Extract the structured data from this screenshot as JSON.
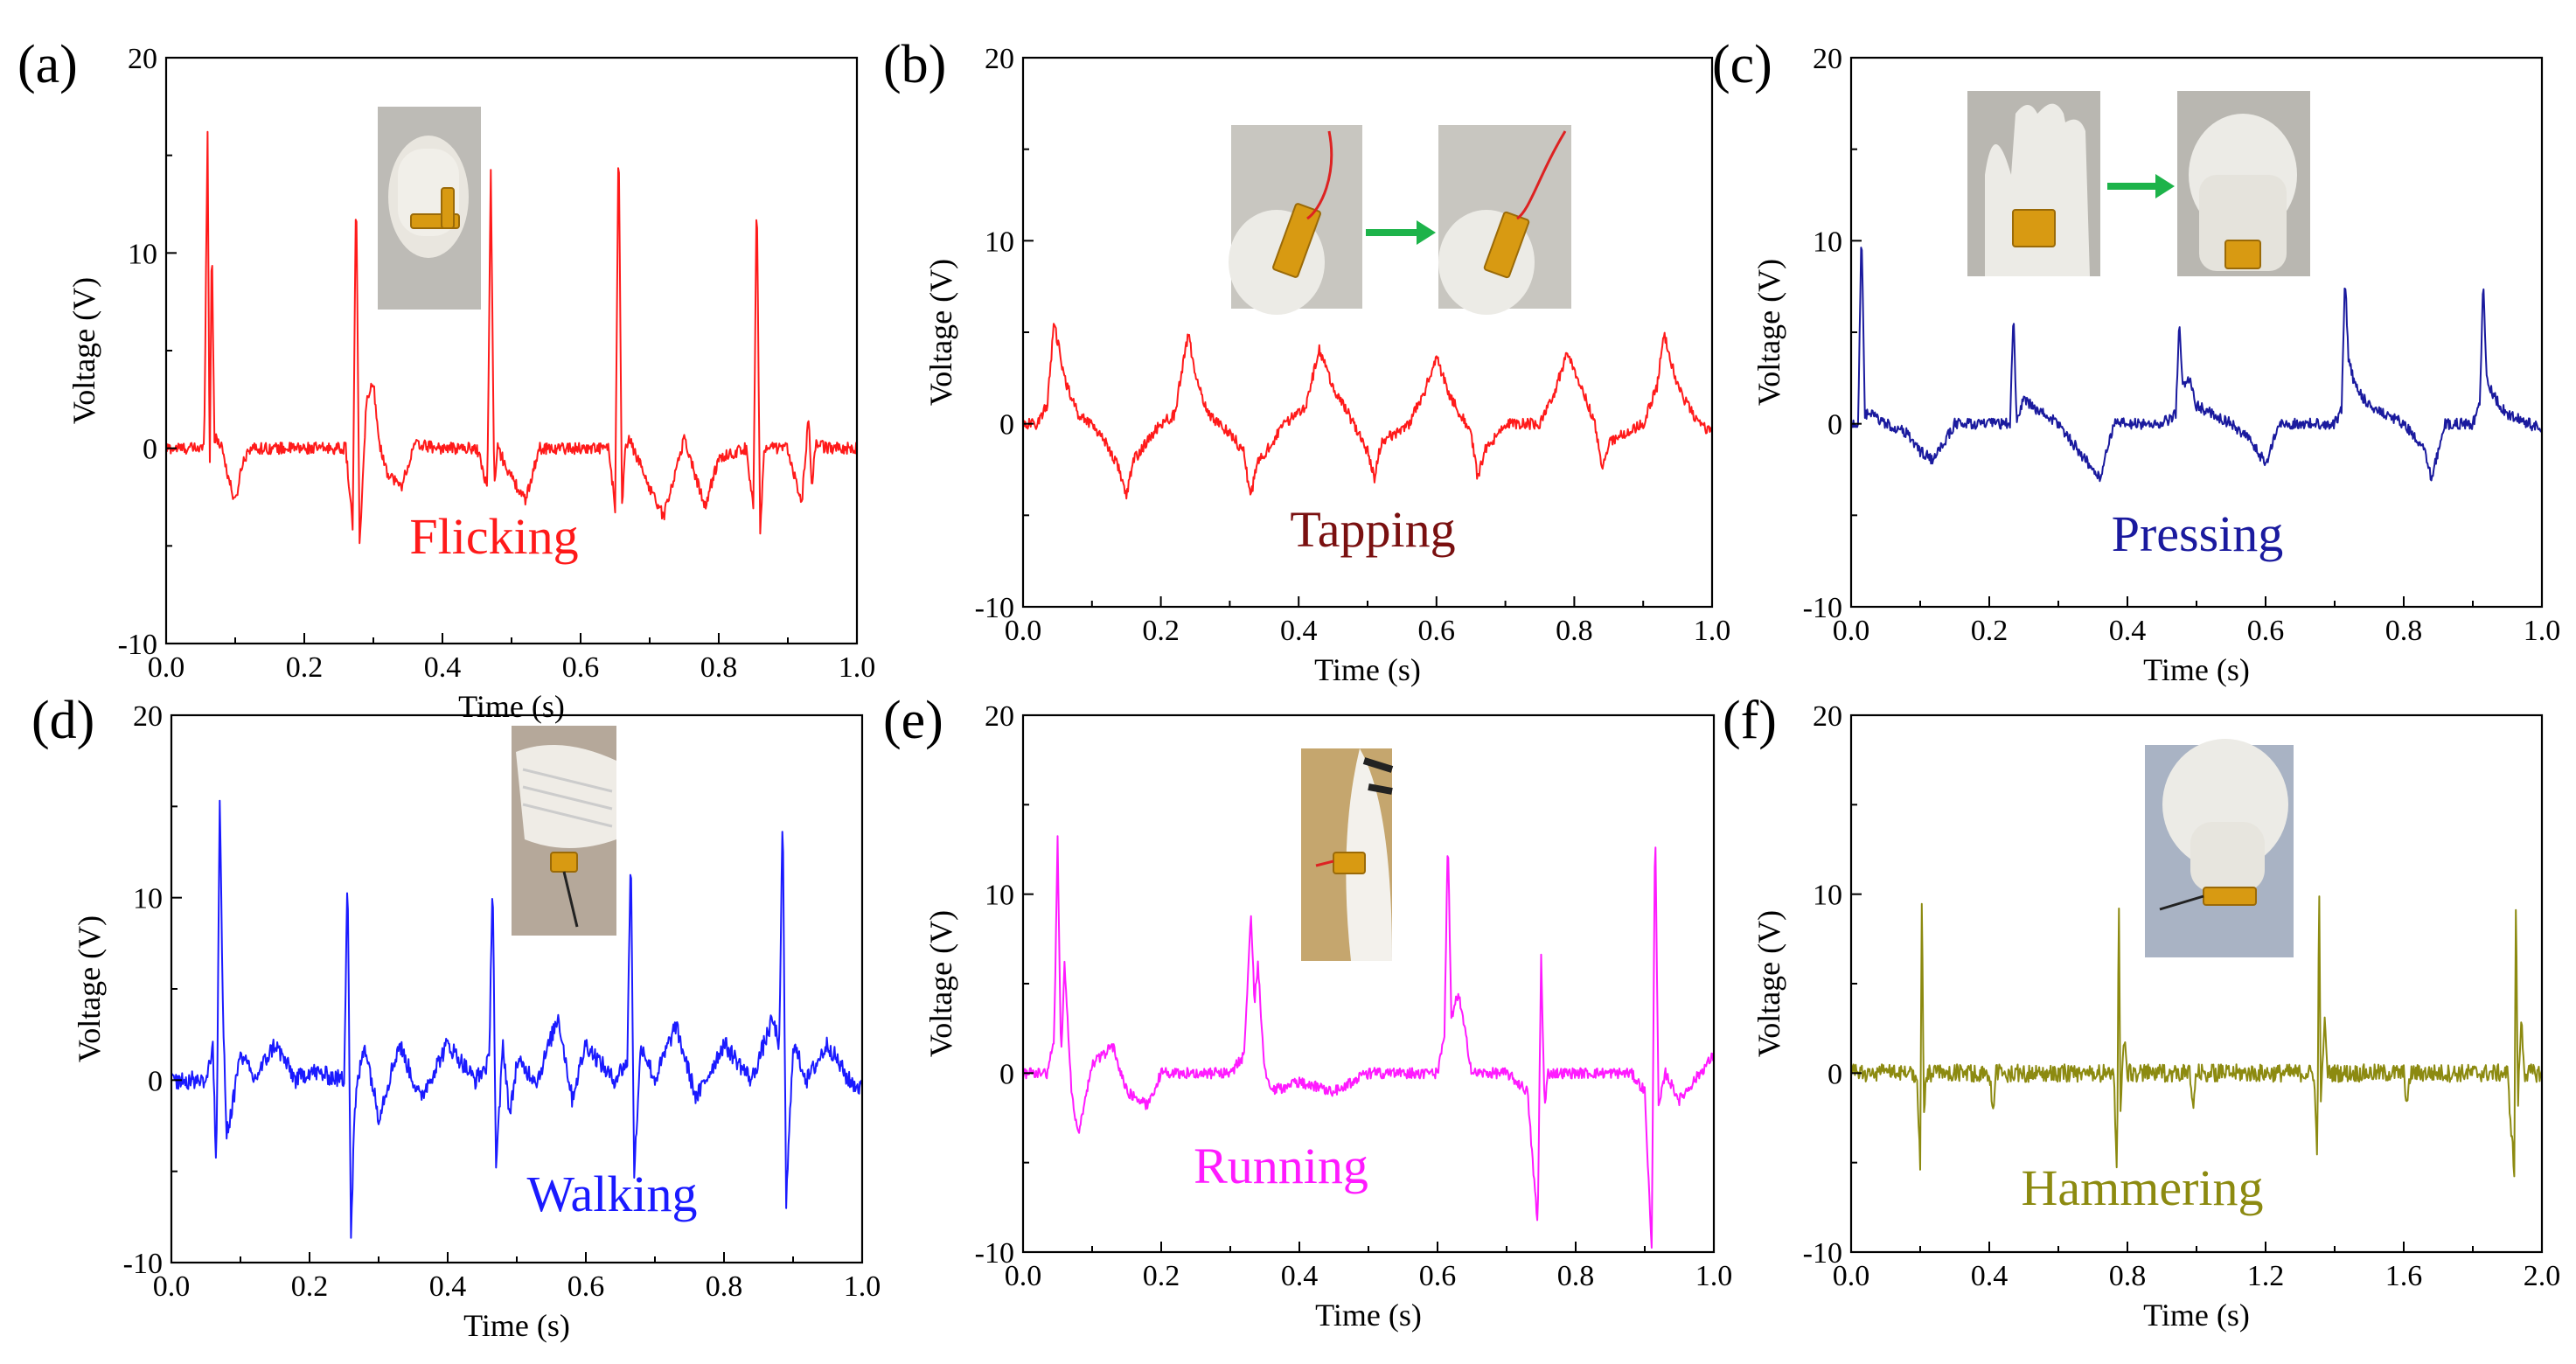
{
  "colors": {
    "red": "#ff1a1a",
    "blue": "#1a1aff",
    "navy": "#1a1a9e",
    "magenta": "#ff1aff",
    "olive": "#8c8a10",
    "darkred": "#7a1010",
    "arrow": "#1db34a"
  },
  "chart_data": [
    {
      "panel": "(a)",
      "type": "line",
      "xlabel": "Time (s)",
      "ylabel": "Voltage (V)",
      "xlim": [
        0,
        1.0
      ],
      "ylim": [
        -10,
        20
      ],
      "xticks": [
        "0.0",
        "0.2",
        "0.4",
        "0.6",
        "0.8",
        "1.0"
      ],
      "yticks": [
        "-10",
        "0",
        "10",
        "20"
      ],
      "annotation": "Flicking",
      "color": "#ff1a1a",
      "annotation_color": "#ff1a1a",
      "noise": 0.3,
      "photo": "finger-flicking-sensor-photo",
      "x": [
        0,
        0.055,
        0.06,
        0.063,
        0.066,
        0.07,
        0.08,
        0.09,
        0.1,
        0.11,
        0.12,
        0.2,
        0.26,
        0.27,
        0.275,
        0.28,
        0.285,
        0.29,
        0.3,
        0.31,
        0.32,
        0.34,
        0.36,
        0.4,
        0.45,
        0.465,
        0.47,
        0.475,
        0.48,
        0.5,
        0.52,
        0.54,
        0.6,
        0.64,
        0.65,
        0.655,
        0.66,
        0.665,
        0.67,
        0.7,
        0.72,
        0.75,
        0.78,
        0.8,
        0.84,
        0.85,
        0.855,
        0.86,
        0.865,
        0.87,
        0.9,
        0.92,
        0.93,
        0.935,
        0.94,
        0.96,
        1.0
      ],
      "y": [
        0,
        0,
        16.5,
        -2,
        11,
        0.5,
        0.2,
        -1.5,
        -2.8,
        -0.8,
        0,
        0,
        0,
        -4,
        13.7,
        -4.8,
        -1.5,
        2.5,
        3.3,
        0,
        -1.2,
        -2,
        0.2,
        0,
        0,
        -2,
        14.2,
        -2,
        0,
        -1.5,
        -2.7,
        0,
        0,
        0,
        -3,
        16.2,
        -3,
        0,
        0.5,
        -2,
        -3.5,
        0.5,
        -3,
        -0.5,
        0,
        -3,
        13.3,
        -4.5,
        -0.5,
        0,
        0,
        -2.8,
        1.5,
        -2,
        0.2,
        0,
        0
      ]
    },
    {
      "panel": "(b)",
      "type": "line",
      "xlabel": "Time (s)",
      "ylabel": "Voltage (V)",
      "xlim": [
        0,
        1.0
      ],
      "ylim": [
        -10,
        20
      ],
      "xticks": [
        "0.0",
        "0.2",
        "0.4",
        "0.6",
        "0.8",
        "1.0"
      ],
      "yticks": [
        "-10",
        "0",
        "10",
        "20"
      ],
      "annotation": "Tapping",
      "color": "#ff1a1a",
      "annotation_color": "#7a1010",
      "noise": 0.3,
      "photo": "finger-tapping-sequence-photo",
      "x": [
        0,
        0.02,
        0.035,
        0.045,
        0.06,
        0.08,
        0.1,
        0.12,
        0.14,
        0.15,
        0.16,
        0.2,
        0.22,
        0.24,
        0.25,
        0.27,
        0.3,
        0.32,
        0.33,
        0.34,
        0.38,
        0.41,
        0.43,
        0.45,
        0.48,
        0.5,
        0.51,
        0.52,
        0.56,
        0.58,
        0.6,
        0.62,
        0.65,
        0.66,
        0.67,
        0.7,
        0.75,
        0.77,
        0.79,
        0.81,
        0.83,
        0.84,
        0.85,
        0.9,
        0.92,
        0.93,
        0.95,
        0.98,
        1.0
      ],
      "y": [
        0,
        0,
        1,
        5.5,
        2.5,
        0.5,
        0,
        -1,
        -2.5,
        -4,
        -2,
        0,
        0.5,
        5,
        2.5,
        0.5,
        -0.5,
        -1.5,
        -4,
        -2.2,
        0,
        1,
        4,
        2,
        0,
        -1.5,
        -3,
        -1,
        0,
        1.5,
        3.6,
        1.5,
        -0.5,
        -3,
        -1.5,
        0,
        0,
        1.5,
        4,
        2,
        0,
        -2.5,
        -1,
        0,
        2,
        5,
        2,
        0,
        -0.5
      ]
    },
    {
      "panel": "(c)",
      "type": "line",
      "xlabel": "Time (s)",
      "ylabel": "Voltage (V)",
      "xlim": [
        0,
        1.0
      ],
      "ylim": [
        -10,
        20
      ],
      "xticks": [
        "0.0",
        "0.2",
        "0.4",
        "0.6",
        "0.8",
        "1.0"
      ],
      "yticks": [
        "-10",
        "0",
        "10",
        "20"
      ],
      "annotation": "Pressing",
      "color": "#1a1a9e",
      "annotation_color": "#1a1a9e",
      "noise": 0.3,
      "photo": "hand-pressing-sensor-photo",
      "x": [
        0,
        0.01,
        0.015,
        0.02,
        0.03,
        0.05,
        0.08,
        0.1,
        0.12,
        0.15,
        0.2,
        0.23,
        0.235,
        0.24,
        0.25,
        0.26,
        0.3,
        0.33,
        0.35,
        0.36,
        0.38,
        0.45,
        0.47,
        0.475,
        0.48,
        0.49,
        0.5,
        0.55,
        0.58,
        0.6,
        0.62,
        0.7,
        0.71,
        0.715,
        0.72,
        0.73,
        0.75,
        0.8,
        0.83,
        0.84,
        0.86,
        0.9,
        0.91,
        0.915,
        0.92,
        0.93,
        0.95,
        1.0
      ],
      "y": [
        0,
        0,
        10.5,
        0.5,
        0.5,
        0,
        -0.5,
        -1.5,
        -2,
        0,
        0,
        0,
        6,
        0,
        1.5,
        1,
        0,
        -1.5,
        -2.5,
        -3,
        0,
        0,
        0.5,
        5.5,
        2,
        2.5,
        1,
        0,
        -1,
        -2.2,
        0,
        0,
        0.8,
        8.1,
        3.5,
        2,
        1,
        0,
        -1.5,
        -3,
        0,
        0,
        1,
        8,
        2.5,
        1.5,
        0.5,
        -0.3
      ]
    },
    {
      "panel": "(d)",
      "type": "line",
      "xlabel": "Time (s)",
      "ylabel": "Voltage (V)",
      "xlim": [
        0,
        1.0
      ],
      "ylim": [
        -10,
        20
      ],
      "xticks": [
        "0.0",
        "0.2",
        "0.4",
        "0.6",
        "0.8",
        "1.0"
      ],
      "yticks": [
        "-10",
        "0",
        "10",
        "20"
      ],
      "annotation": "Walking",
      "color": "#1a1aff",
      "annotation_color": "#1a1aff",
      "noise": 0.5,
      "photo": "shoe-walking-sensor-photo",
      "x": [
        0,
        0.05,
        0.06,
        0.065,
        0.07,
        0.075,
        0.08,
        0.09,
        0.1,
        0.12,
        0.15,
        0.18,
        0.2,
        0.25,
        0.255,
        0.26,
        0.265,
        0.27,
        0.28,
        0.3,
        0.33,
        0.36,
        0.4,
        0.44,
        0.46,
        0.465,
        0.47,
        0.48,
        0.49,
        0.5,
        0.53,
        0.56,
        0.58,
        0.6,
        0.64,
        0.66,
        0.665,
        0.67,
        0.68,
        0.7,
        0.73,
        0.76,
        0.8,
        0.84,
        0.87,
        0.88,
        0.885,
        0.89,
        0.9,
        0.92,
        0.95,
        0.98,
        1.0
      ],
      "y": [
        0,
        0,
        2,
        -5.5,
        15.5,
        3,
        -3,
        -1,
        1.5,
        0,
        2,
        0,
        0.5,
        0,
        12,
        -8.5,
        -2,
        0,
        2,
        -2,
        2,
        -1,
        2,
        0,
        1,
        11.5,
        -5,
        2,
        -2,
        1,
        0,
        3.5,
        -1,
        2,
        0,
        1,
        12.8,
        -5,
        2,
        0,
        3,
        -1,
        2,
        0,
        3.3,
        2,
        14.6,
        -6.8,
        2,
        0,
        2,
        0,
        -0.5
      ]
    },
    {
      "panel": "(e)",
      "type": "line",
      "xlabel": "Time (s)",
      "ylabel": "Voltage (V)",
      "xlim": [
        0,
        1.0
      ],
      "ylim": [
        -10,
        20
      ],
      "xticks": [
        "0.0",
        "0.2",
        "0.4",
        "0.6",
        "0.8",
        "1.0"
      ],
      "yticks": [
        "-10",
        "0",
        "10",
        "20"
      ],
      "annotation": "Running",
      "color": "#ff1aff",
      "annotation_color": "#ff1aff",
      "noise": 0.3,
      "photo": "shoe-running-sensor-photo",
      "x": [
        0,
        0.035,
        0.045,
        0.05,
        0.055,
        0.06,
        0.07,
        0.08,
        0.1,
        0.13,
        0.15,
        0.18,
        0.2,
        0.3,
        0.32,
        0.33,
        0.335,
        0.34,
        0.35,
        0.36,
        0.4,
        0.45,
        0.5,
        0.6,
        0.61,
        0.615,
        0.62,
        0.63,
        0.65,
        0.7,
        0.73,
        0.745,
        0.75,
        0.755,
        0.76,
        0.8,
        0.88,
        0.9,
        0.91,
        0.915,
        0.92,
        0.93,
        0.95,
        0.98,
        1.0
      ],
      "y": [
        0,
        0,
        2,
        13,
        1,
        6,
        -1,
        -3.5,
        0.5,
        1.5,
        -1,
        -1.8,
        0,
        0,
        1,
        9,
        4,
        6,
        0,
        -1,
        -0.5,
        -1,
        0,
        0,
        2,
        13.3,
        3,
        4.5,
        0,
        0,
        -1,
        -8.6,
        6.5,
        -2,
        0,
        0,
        0,
        -1,
        -10,
        14.5,
        -2,
        0,
        -1.5,
        0,
        1
      ]
    },
    {
      "panel": "(f)",
      "type": "line",
      "xlabel": "Time (s)",
      "ylabel": "Voltage (V)",
      "xlim": [
        0,
        2.0
      ],
      "ylim": [
        -10,
        20
      ],
      "xticks": [
        "0.0",
        "0.4",
        "0.8",
        "1.2",
        "1.6",
        "2.0"
      ],
      "yticks": [
        "-10",
        "0",
        "10",
        "20"
      ],
      "annotation": "Hammering",
      "color": "#8c8a10",
      "annotation_color": "#8c8a10",
      "noise": 0.5,
      "photo": "finger-hammering-sensor-photo",
      "x": [
        0,
        0.19,
        0.2,
        0.205,
        0.21,
        0.22,
        0.3,
        0.4,
        0.41,
        0.42,
        0.76,
        0.77,
        0.775,
        0.78,
        0.79,
        0.8,
        0.98,
        0.99,
        1.0,
        1.34,
        1.35,
        1.355,
        1.36,
        1.37,
        1.38,
        1.6,
        1.61,
        1.62,
        1.9,
        1.92,
        1.925,
        1.93,
        1.94,
        1.95,
        2.0
      ],
      "y": [
        0,
        0,
        -5,
        11,
        -2,
        0,
        0,
        0,
        -2,
        0,
        0,
        -5.5,
        10.5,
        -2,
        2,
        0,
        0,
        -2,
        0,
        0,
        -5,
        11.8,
        -2,
        3,
        0,
        0,
        -1.8,
        0,
        0,
        -5.5,
        11,
        -2,
        3,
        0,
        0
      ]
    }
  ]
}
